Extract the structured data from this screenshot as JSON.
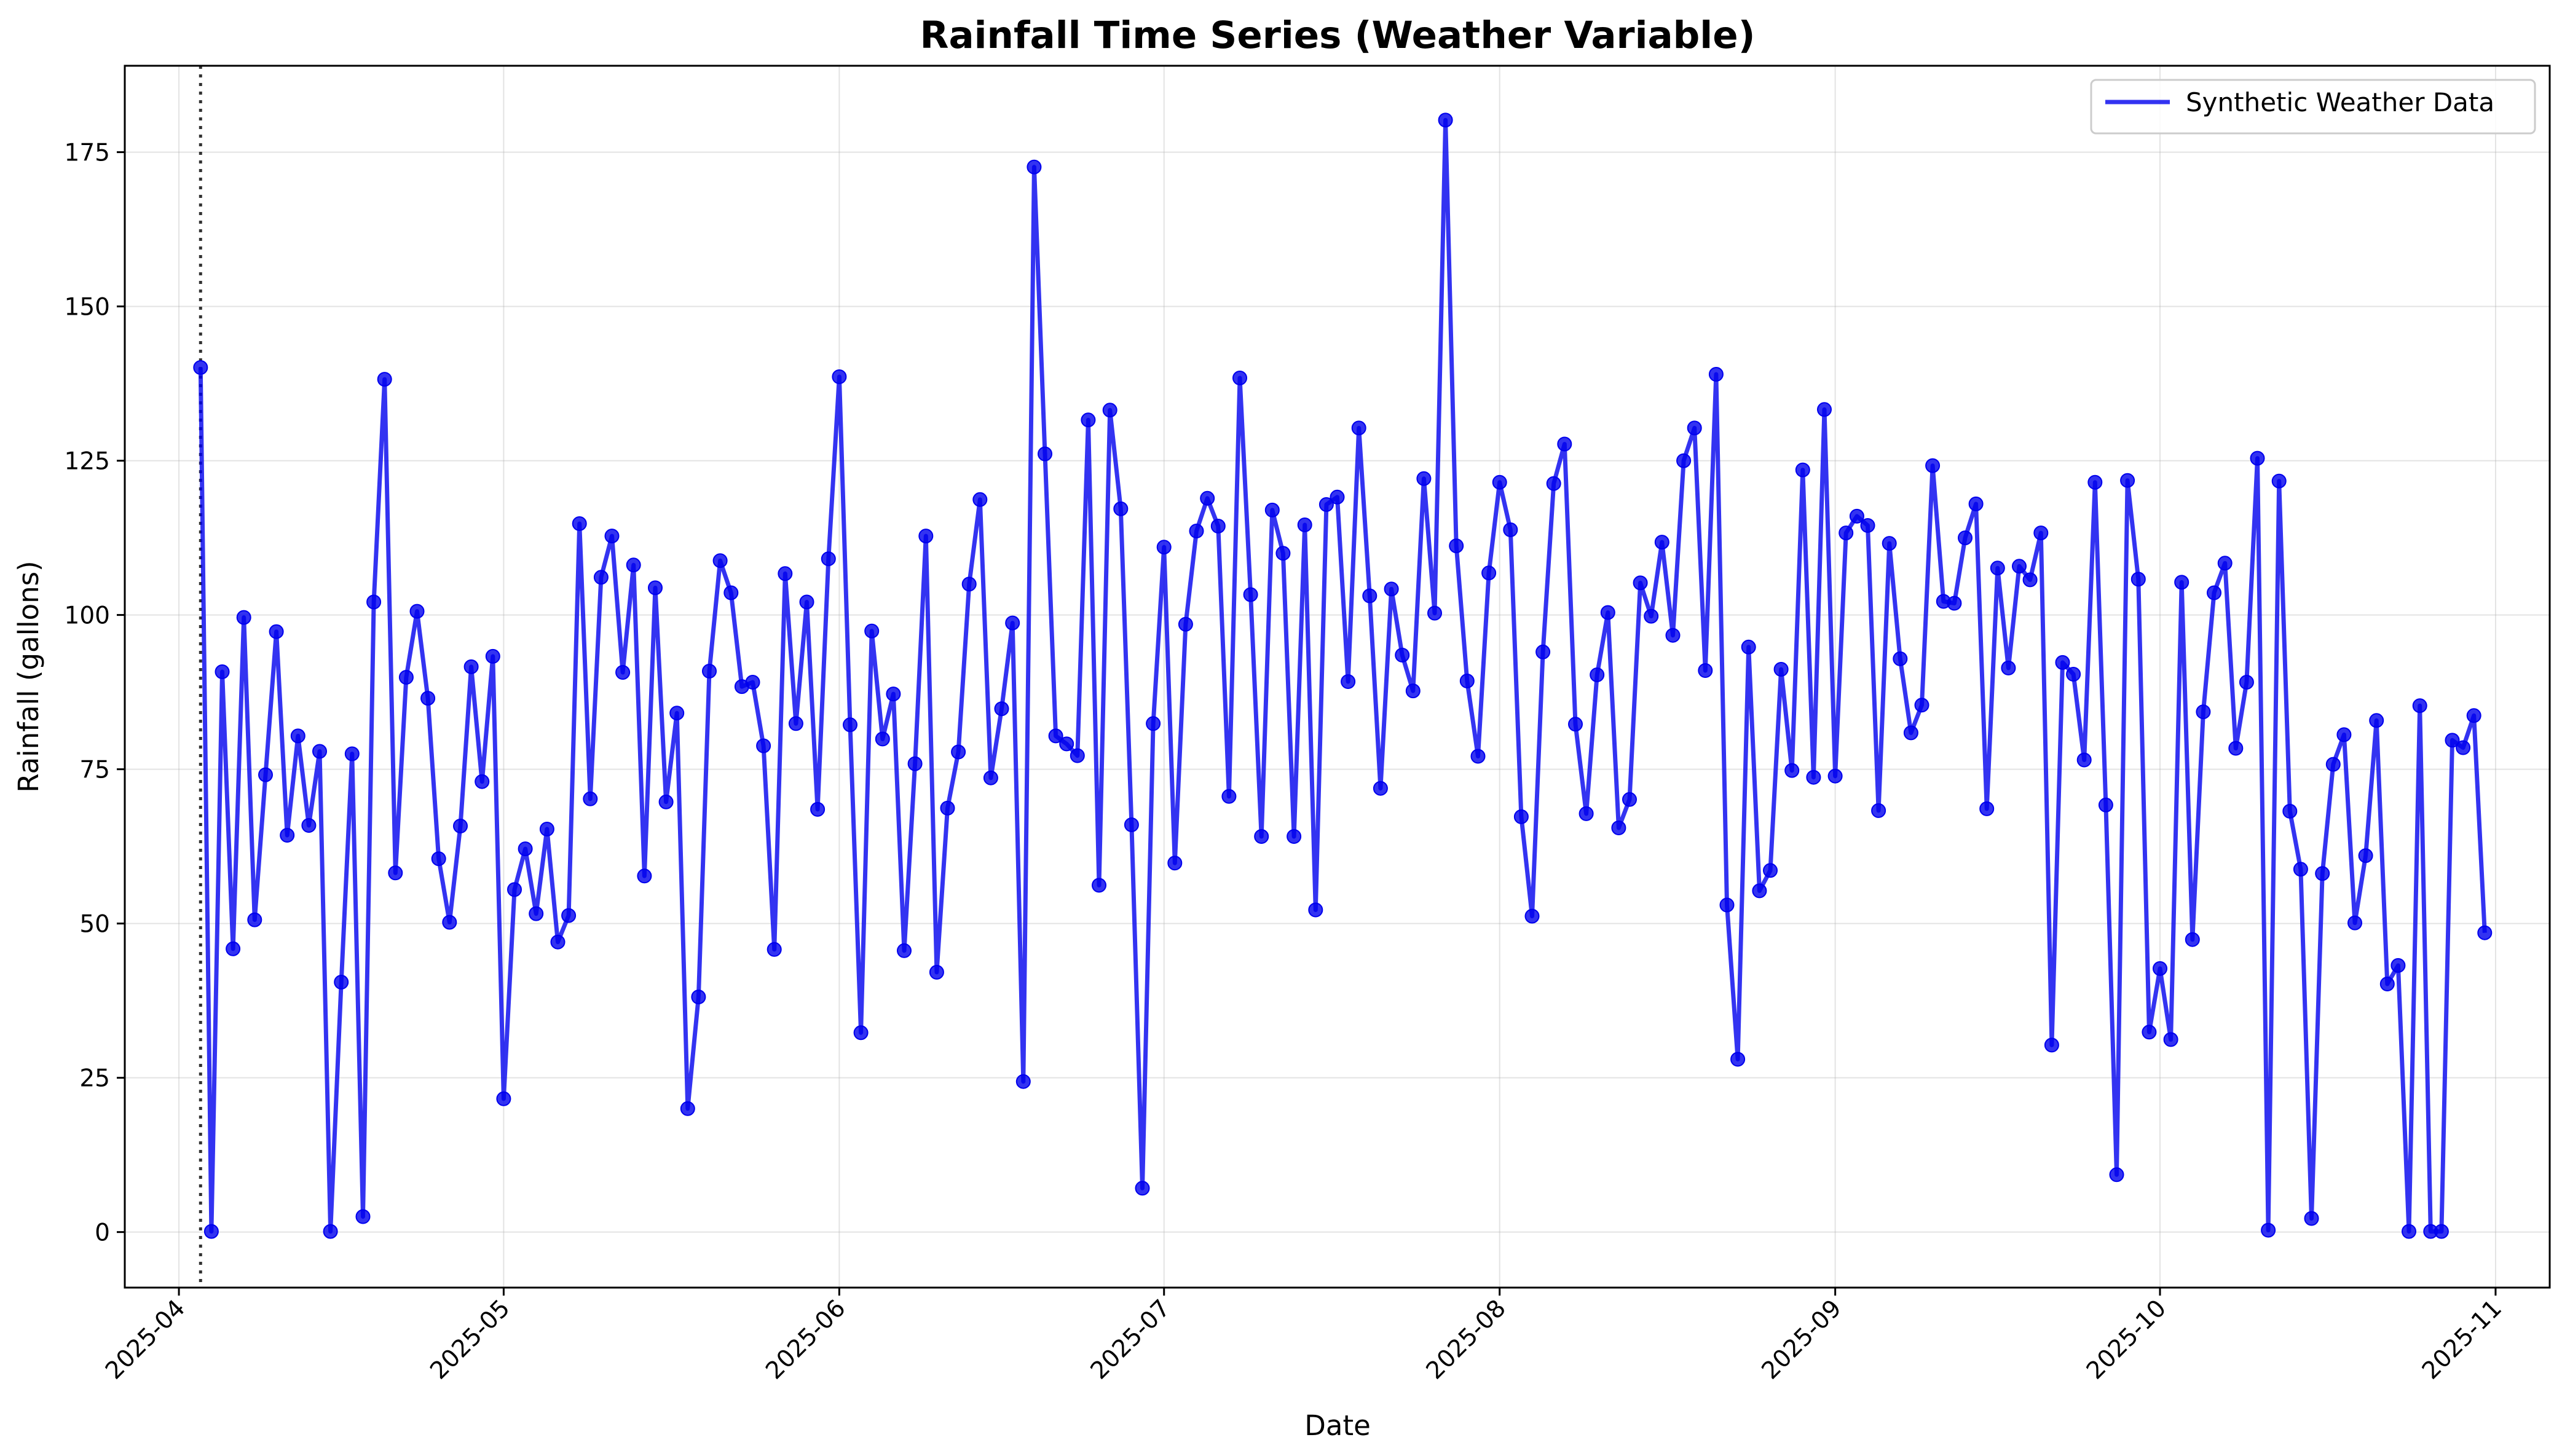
{
  "chart_data": {
    "type": "line",
    "title": "Rainfall Time Series (Weather Variable)",
    "xlabel": "Date",
    "ylabel": "Rainfall (gallons)",
    "x_range": [
      "2025-03-27",
      "2025-11-06"
    ],
    "ylim": [
      -9,
      189
    ],
    "y_ticks": [
      0,
      25,
      50,
      75,
      100,
      125,
      150,
      175
    ],
    "x_ticks": [
      "2025-04-01",
      "2025-05-01",
      "2025-06-01",
      "2025-07-01",
      "2025-08-01",
      "2025-09-01",
      "2025-10-01",
      "2025-11-01"
    ],
    "x_tick_labels": [
      "2025-04",
      "2025-05",
      "2025-06",
      "2025-07",
      "2025-08",
      "2025-09",
      "2025-10",
      "2025-11"
    ],
    "grid": true,
    "legend_position": "top-right",
    "vline": {
      "date": "2025-04-03",
      "style": "dotted",
      "color": "#333333"
    },
    "series": [
      {
        "name": "Synthetic Weather Data",
        "color": "#0000ee",
        "start_date": "2025-04-03",
        "step_days": 1,
        "values": [
          140.1,
          0.1,
          90.8,
          45.9,
          99.6,
          50.6,
          74.1,
          97.3,
          64.3,
          80.4,
          65.9,
          77.9,
          0.1,
          40.5,
          77.5,
          2.5,
          102.1,
          138.2,
          58.2,
          89.9,
          100.6,
          86.5,
          60.5,
          50.2,
          65.8,
          91.6,
          73.0,
          93.3,
          21.6,
          55.5,
          62.1,
          51.6,
          65.3,
          47.0,
          51.3,
          114.8,
          70.2,
          106.1,
          112.8,
          90.7,
          108.1,
          57.7,
          104.4,
          69.7,
          84.1,
          20.0,
          38.1,
          90.9,
          108.8,
          103.6,
          88.4,
          89.1,
          78.8,
          45.8,
          106.7,
          82.4,
          102.1,
          68.5,
          109.1,
          138.6,
          82.2,
          32.3,
          97.4,
          79.9,
          87.2,
          45.6,
          75.9,
          112.8,
          42.1,
          68.7,
          77.8,
          105.0,
          118.7,
          73.6,
          84.8,
          98.7,
          24.4,
          172.6,
          126.1,
          80.4,
          79.1,
          77.2,
          131.6,
          56.2,
          133.2,
          117.2,
          66.0,
          7.1,
          82.4,
          111.0,
          59.8,
          98.5,
          113.6,
          118.9,
          114.4,
          70.6,
          138.4,
          103.3,
          64.1,
          117.0,
          110.0,
          64.1,
          114.6,
          52.2,
          117.9,
          119.1,
          89.2,
          130.3,
          103.1,
          71.9,
          104.2,
          93.5,
          87.7,
          122.1,
          100.3,
          180.2,
          111.2,
          89.3,
          77.1,
          106.8,
          121.5,
          113.8,
          67.3,
          51.2,
          94.0,
          121.3,
          127.7,
          82.3,
          67.8,
          90.3,
          100.4,
          65.5,
          70.1,
          105.2,
          99.8,
          111.8,
          96.7,
          125.0,
          130.3,
          91.0,
          139.0,
          53.0,
          28.0,
          94.8,
          55.3,
          58.6,
          91.2,
          74.8,
          123.5,
          73.7,
          133.3,
          73.9,
          113.3,
          116.0,
          114.5,
          68.3,
          111.6,
          92.9,
          80.9,
          85.4,
          124.2,
          102.2,
          101.9,
          112.5,
          118.0,
          68.6,
          107.6,
          91.4,
          107.9,
          105.7,
          113.3,
          30.3,
          92.3,
          90.4,
          76.5,
          121.5,
          69.2,
          9.3,
          121.8,
          105.8,
          32.4,
          42.7,
          31.2,
          105.3,
          47.4,
          84.3,
          103.6,
          108.4,
          78.4,
          89.1,
          125.4,
          0.3,
          121.7,
          68.2,
          58.8,
          2.2,
          58.1,
          75.8,
          80.6,
          50.1,
          61.0,
          82.9,
          40.2,
          43.2,
          0.1,
          85.3,
          0.1,
          0.1,
          79.7,
          78.5,
          83.7,
          48.5
        ]
      }
    ]
  }
}
